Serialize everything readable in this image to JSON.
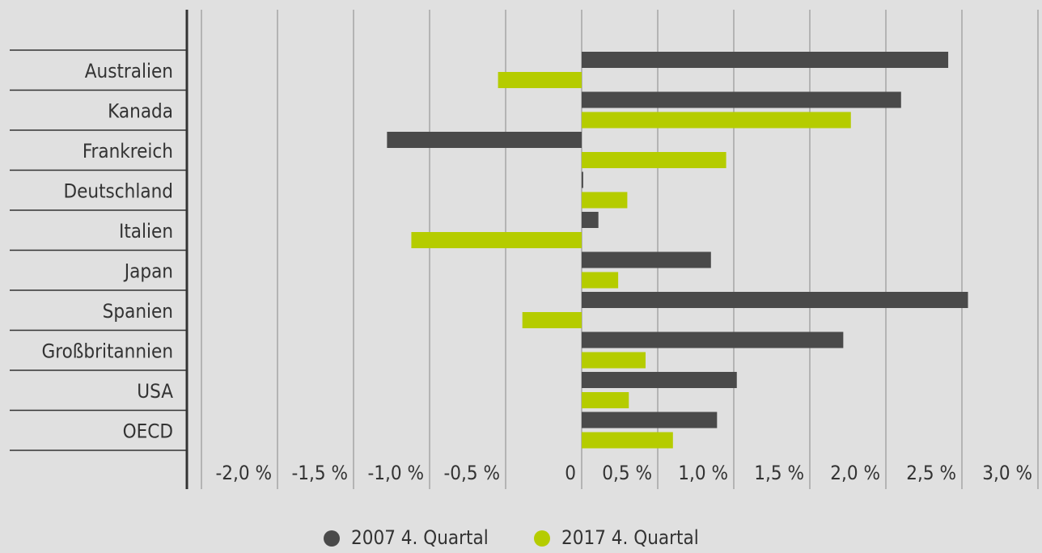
{
  "chart_data": {
    "type": "hbar",
    "categories": [
      "Australien",
      "Kanada",
      "Frankreich",
      "Deutschland",
      "Italien",
      "Japan",
      "Spanien",
      "Großbritannien",
      "USA",
      "OECD"
    ],
    "series": [
      {
        "name": "2007 4. Quartal",
        "color": "#4a4a4a",
        "values": [
          2.41,
          2.1,
          -1.28,
          0.01,
          0.11,
          0.85,
          2.54,
          1.72,
          1.02,
          0.89
        ]
      },
      {
        "name": "2017 4. Quartal",
        "color": "#b5cc00",
        "values": [
          -0.55,
          1.77,
          0.95,
          0.3,
          -1.12,
          0.24,
          -0.39,
          0.42,
          0.31,
          0.6
        ]
      }
    ],
    "xlim": [
      -2.5,
      3.0
    ],
    "xticks": [
      {
        "value": -2.0,
        "label": "-2,0 %"
      },
      {
        "value": -1.5,
        "label": "-1,5 %"
      },
      {
        "value": -1.0,
        "label": "-1,0 %"
      },
      {
        "value": -0.5,
        "label": "-0,5 %"
      },
      0,
      {
        "value": 0.5,
        "label": "0,5 %"
      },
      {
        "value": 1.0,
        "label": "1,0 %"
      },
      {
        "value": 1.5,
        "label": "1,5 %"
      },
      {
        "value": 2.0,
        "label": "2,0 %"
      },
      {
        "value": 2.5,
        "label": "2,5 %"
      },
      {
        "value": 3.0,
        "label": "3,0 %"
      }
    ],
    "grid": true
  }
}
